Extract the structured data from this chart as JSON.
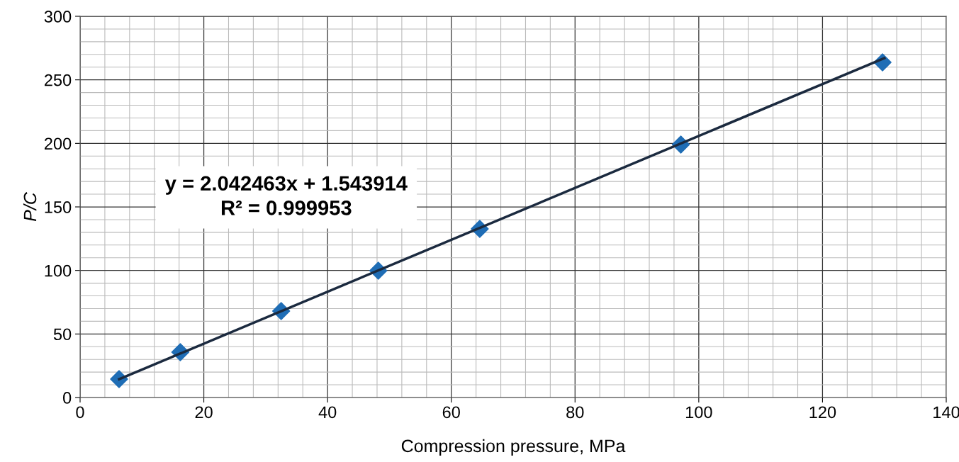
{
  "chart_data": {
    "type": "scatter",
    "xlabel": "Compression pressure, MPa",
    "ylabel": "P/C",
    "x": [
      6.3,
      16.2,
      32.5,
      48.2,
      64.6,
      97.1,
      129.7
    ],
    "series": [
      {
        "type": "line",
        "x": [
          6.3,
          130
        ],
        "values": [
          14.4,
          267.1
        ],
        "color": "#1b2a3f",
        "marker": "none",
        "line_style": "solid"
      },
      {
        "values": [
          14.5,
          35.7,
          68,
          99.8,
          132.7,
          199.1,
          263.8
        ],
        "color": "#1f6db5",
        "marker": "diamond"
      }
    ],
    "annotations": [
      "y = 2.042463x + 1.543914\nR² = 0.999953"
    ],
    "xlim": [
      0,
      140
    ],
    "xticks": [
      0,
      20,
      40,
      60,
      80,
      100,
      120,
      140
    ],
    "ylim": [
      0,
      300
    ],
    "yticks": [
      0,
      50,
      100,
      150,
      200,
      250,
      300
    ],
    "grid": true,
    "legend": false
  }
}
